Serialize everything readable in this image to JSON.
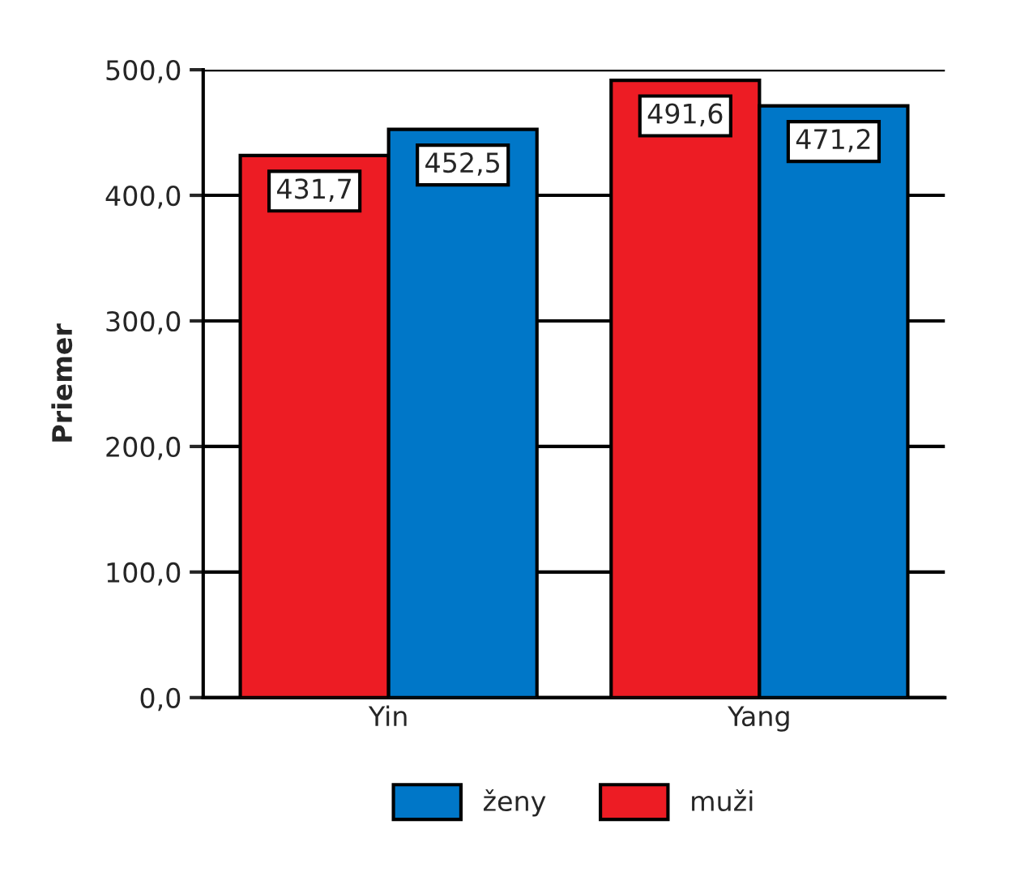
{
  "chart_data": {
    "type": "bar",
    "ylabel": "Priemer",
    "categories": [
      "Yin",
      "Yang"
    ],
    "series": [
      {
        "name": "muži",
        "color": "#ed1c24",
        "values": [
          431.7,
          491.6
        ],
        "value_labels": [
          "431,7",
          "491,6"
        ]
      },
      {
        "name": "ženy",
        "color": "#0077c8",
        "values": [
          452.5,
          471.2
        ],
        "value_labels": [
          "452,5",
          "471,2"
        ]
      }
    ],
    "ylim": [
      0,
      500
    ],
    "yticks": [
      {
        "value": 0,
        "label": "0,0"
      },
      {
        "value": 100,
        "label": "100,0"
      },
      {
        "value": 200,
        "label": "200,0"
      },
      {
        "value": 300,
        "label": "300,0"
      },
      {
        "value": 400,
        "label": "400,0"
      },
      {
        "value": 500,
        "label": "500,0"
      }
    ],
    "grid": "y",
    "legend": "bottom"
  }
}
